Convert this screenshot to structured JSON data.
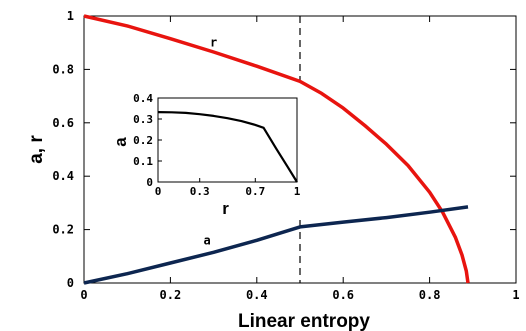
{
  "chart_data": [
    {
      "type": "line",
      "xlabel": "Linear entropy",
      "ylabel": "a, r",
      "xlim": [
        0,
        1
      ],
      "ylim": [
        0,
        1
      ],
      "xticks": [
        "0",
        "0.2",
        "0.4",
        "0.6",
        "0.8",
        "1"
      ],
      "yticks": [
        "0",
        "0.2",
        "0.4",
        "0.6",
        "0.8",
        "1"
      ],
      "grid": false,
      "vline_x": 0.5,
      "series": [
        {
          "name": "r",
          "color": "#e8140f",
          "x": [
            0,
            0.1,
            0.2,
            0.3,
            0.4,
            0.5,
            0.55,
            0.6,
            0.65,
            0.7,
            0.75,
            0.8,
            0.83,
            0.86,
            0.875,
            0.885,
            0.889
          ],
          "y": [
            1.0,
            0.963,
            0.915,
            0.865,
            0.812,
            0.755,
            0.71,
            0.655,
            0.59,
            0.52,
            0.44,
            0.34,
            0.265,
            0.17,
            0.105,
            0.045,
            0.0
          ]
        },
        {
          "name": "a",
          "color": "#0d2650",
          "x": [
            0,
            0.1,
            0.2,
            0.3,
            0.4,
            0.5,
            0.6,
            0.7,
            0.8,
            0.889
          ],
          "y": [
            0,
            0.035,
            0.075,
            0.115,
            0.16,
            0.21,
            0.228,
            0.245,
            0.265,
            0.285
          ]
        }
      ]
    },
    {
      "type": "line",
      "xlabel": "r",
      "ylabel": "a",
      "xlim": [
        0,
        1
      ],
      "ylim": [
        0,
        0.4
      ],
      "xticks": [
        "0",
        "0.3",
        "0.7",
        "1"
      ],
      "xtick_values": [
        0,
        0.3,
        0.7,
        1
      ],
      "yticks": [
        "0",
        "0.1",
        "0.2",
        "0.3",
        "0.4"
      ],
      "grid": false,
      "series": [
        {
          "color": "#000000",
          "x": [
            0,
            0.1,
            0.2,
            0.3,
            0.4,
            0.5,
            0.6,
            0.7,
            0.76,
            0.85,
            0.93,
            1.0
          ],
          "y": [
            0.333,
            0.332,
            0.329,
            0.323,
            0.315,
            0.304,
            0.29,
            0.272,
            0.258,
            0.16,
            0.075,
            0.0
          ]
        }
      ]
    }
  ]
}
